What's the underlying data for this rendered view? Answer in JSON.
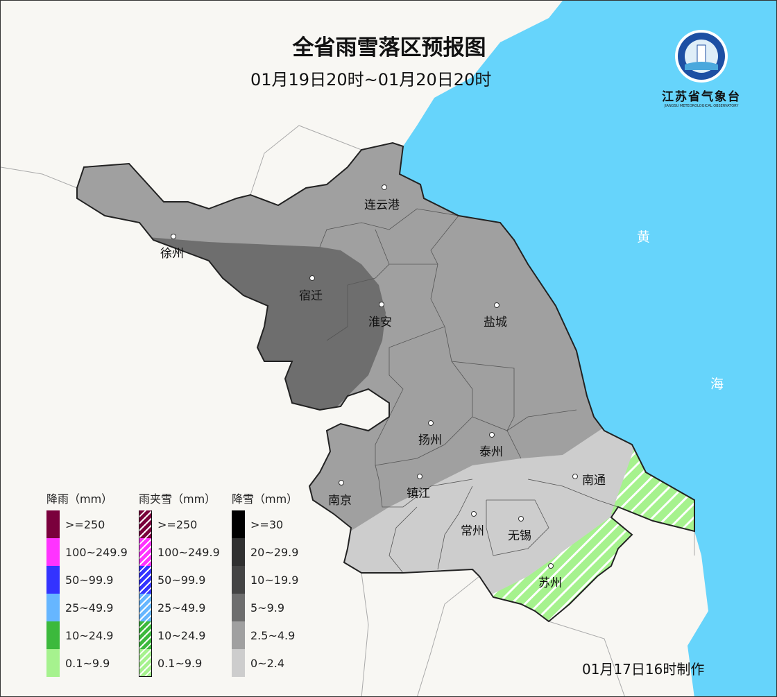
{
  "title": "全省雨雪落区预报图",
  "subtitle": "01月19日20时~01月20日20时",
  "produced": "01月17日16时制作",
  "logo": {
    "name_cn": "江苏省气象台",
    "name_en": "JIANGSU METEOROLOGICAL OBSERVATORY"
  },
  "sea_labels": [
    "黄",
    "海"
  ],
  "cities": [
    "连云港",
    "徐州",
    "宿迁",
    "淮安",
    "盐城",
    "扬州",
    "泰州",
    "南通",
    "南京",
    "镇江",
    "常州",
    "无锡",
    "苏州"
  ],
  "colors": {
    "sea": "#66d4fb",
    "snow_5_9.9": "#6e6e6e",
    "snow_2.5_4.9": "#a0a0a0",
    "snow_0_2.4": "#cdcdcd",
    "sleet_0.1_9.9": "#a6f28e"
  },
  "legend": {
    "rain": {
      "title": "降雨（mm）",
      "items": [
        {
          "label": ">=250",
          "color": "#7a003c"
        },
        {
          "label": "100~249.9",
          "color": "#ff33ff"
        },
        {
          "label": "50~99.9",
          "color": "#3333ff"
        },
        {
          "label": "25~49.9",
          "color": "#66b6ff"
        },
        {
          "label": "10~24.9",
          "color": "#3cb93c"
        },
        {
          "label": "0.1~9.9",
          "color": "#a6f28e"
        }
      ]
    },
    "sleet": {
      "title": "雨夹雪（mm）",
      "items": [
        {
          "label": ">=250",
          "color": "#7a003c"
        },
        {
          "label": "100~249.9",
          "color": "#ff33ff"
        },
        {
          "label": "50~99.9",
          "color": "#3333ff"
        },
        {
          "label": "25~49.9",
          "color": "#66b6ff"
        },
        {
          "label": "10~24.9",
          "color": "#3cb93c"
        },
        {
          "label": "0.1~9.9",
          "color": "#a6f28e"
        }
      ]
    },
    "snow": {
      "title": "降雪（mm）",
      "items": [
        {
          "label": ">=30",
          "color": "#000000"
        },
        {
          "label": "20~29.9",
          "color": "#303030"
        },
        {
          "label": "10~19.9",
          "color": "#444444"
        },
        {
          "label": "5~9.9",
          "color": "#6e6e6e"
        },
        {
          "label": "2.5~4.9",
          "color": "#a0a0a0"
        },
        {
          "label": "0~2.4",
          "color": "#cdcdcd"
        }
      ]
    }
  }
}
